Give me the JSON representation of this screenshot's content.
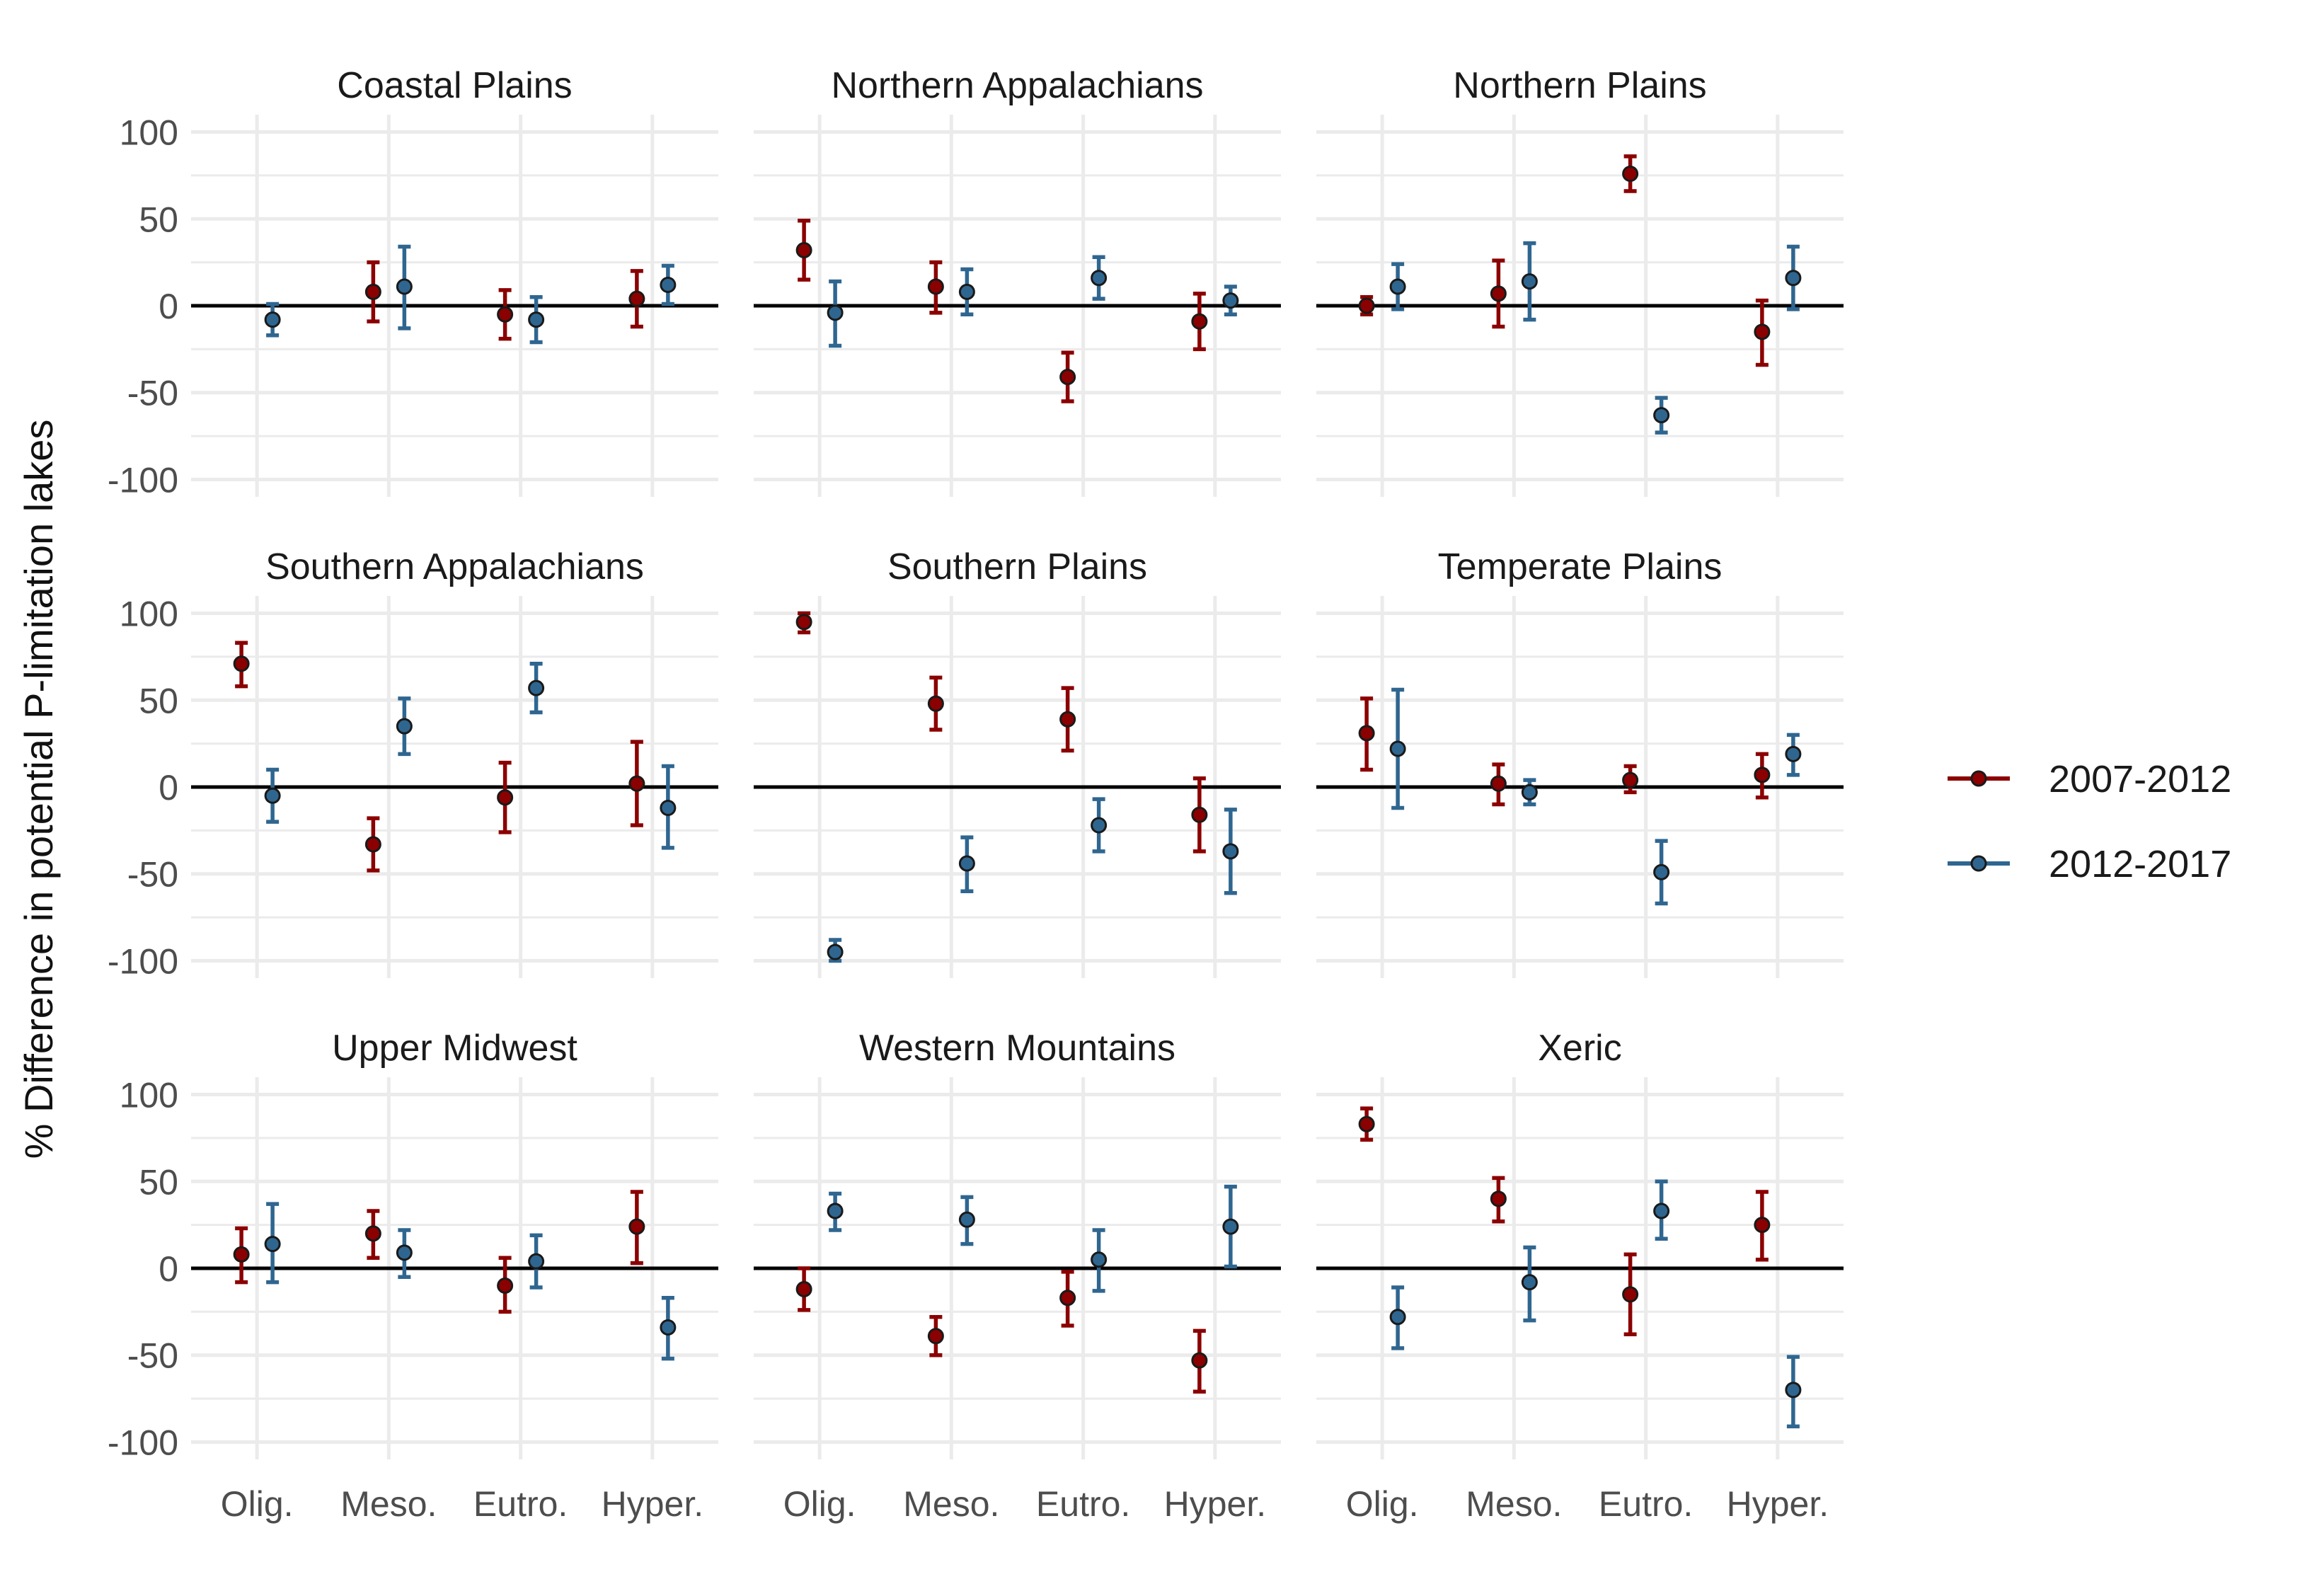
{
  "ylabel": "% Difference in potential P-limitation lakes",
  "xlabel": "",
  "legend": {
    "position": "right",
    "entries": [
      {
        "label": "2007-2012",
        "color": "#8B0000"
      },
      {
        "label": "2012-2017",
        "color": "#2F6690"
      }
    ]
  },
  "colors": {
    "series_2007_2012": "#8B0000",
    "series_2012_2017": "#2F6690",
    "grid": "#EBEBEB",
    "zero_line": "#000000",
    "point_fill": "#3a2a2a"
  },
  "chart_data": {
    "type": "scatter",
    "subtype": "point-with-error-bars, faceted 3x3",
    "categories": [
      "Olig.",
      "Meso.",
      "Eutro.",
      "Hyper."
    ],
    "ylim": [
      -110,
      110
    ],
    "yticks": [
      -100,
      -50,
      0,
      50,
      100
    ],
    "ytick_labels": [
      "-100",
      "-50",
      "0",
      "50",
      "100"
    ],
    "grid": true,
    "series_names": [
      "2007-2012",
      "2012-2017"
    ],
    "panels": [
      {
        "title": "Coastal Plains",
        "series": [
          {
            "name": "2007-2012",
            "values": [
              null,
              8,
              -5,
              4
            ],
            "lower": [
              null,
              -9,
              -19,
              -12
            ],
            "upper": [
              null,
              25,
              9,
              20
            ]
          },
          {
            "name": "2012-2017",
            "values": [
              -8,
              11,
              -8,
              12
            ],
            "lower": [
              -17,
              -13,
              -21,
              1
            ],
            "upper": [
              1,
              34,
              5,
              23
            ]
          }
        ]
      },
      {
        "title": "Northern Appalachians",
        "series": [
          {
            "name": "2007-2012",
            "values": [
              32,
              11,
              -41,
              -9
            ],
            "lower": [
              15,
              -4,
              -55,
              -25
            ],
            "upper": [
              49,
              25,
              -27,
              7
            ]
          },
          {
            "name": "2012-2017",
            "values": [
              -4,
              8,
              16,
              3
            ],
            "lower": [
              -23,
              -5,
              4,
              -5
            ],
            "upper": [
              14,
              21,
              28,
              11
            ]
          }
        ]
      },
      {
        "title": "Northern Plains",
        "series": [
          {
            "name": "2007-2012",
            "values": [
              0,
              7,
              76,
              -15
            ],
            "lower": [
              -5,
              -12,
              66,
              -34
            ],
            "upper": [
              5,
              26,
              86,
              3
            ]
          },
          {
            "name": "2012-2017",
            "values": [
              11,
              14,
              -63,
              16
            ],
            "lower": [
              -2,
              -8,
              -73,
              -2
            ],
            "upper": [
              24,
              36,
              -53,
              34
            ]
          }
        ]
      },
      {
        "title": "Southern Appalachians",
        "series": [
          {
            "name": "2007-2012",
            "values": [
              71,
              -33,
              -6,
              2
            ],
            "lower": [
              58,
              -48,
              -26,
              -22
            ],
            "upper": [
              83,
              -18,
              14,
              26
            ]
          },
          {
            "name": "2012-2017",
            "values": [
              -5,
              35,
              57,
              -12
            ],
            "lower": [
              -20,
              19,
              43,
              -35
            ],
            "upper": [
              10,
              51,
              71,
              12
            ]
          }
        ]
      },
      {
        "title": "Southern Plains",
        "series": [
          {
            "name": "2007-2012",
            "values": [
              95,
              48,
              39,
              -16
            ],
            "lower": [
              89,
              33,
              21,
              -37
            ],
            "upper": [
              100,
              63,
              57,
              5
            ]
          },
          {
            "name": "2012-2017",
            "values": [
              -95,
              -44,
              -22,
              -37
            ],
            "lower": [
              -100,
              -60,
              -37,
              -61
            ],
            "upper": [
              -88,
              -29,
              -7,
              -13
            ]
          }
        ]
      },
      {
        "title": "Temperate Plains",
        "series": [
          {
            "name": "2007-2012",
            "values": [
              31,
              2,
              4,
              7
            ],
            "lower": [
              10,
              -10,
              -3,
              -6
            ],
            "upper": [
              51,
              13,
              12,
              19
            ]
          },
          {
            "name": "2012-2017",
            "values": [
              22,
              -3,
              -49,
              19
            ],
            "lower": [
              -12,
              -10,
              -67,
              7
            ],
            "upper": [
              56,
              4,
              -31,
              30
            ]
          }
        ]
      },
      {
        "title": "Upper Midwest",
        "series": [
          {
            "name": "2007-2012",
            "values": [
              8,
              20,
              -10,
              24
            ],
            "lower": [
              -8,
              6,
              -25,
              3
            ],
            "upper": [
              23,
              33,
              6,
              44
            ]
          },
          {
            "name": "2012-2017",
            "values": [
              14,
              9,
              4,
              -34
            ],
            "lower": [
              -8,
              -5,
              -11,
              -52
            ],
            "upper": [
              37,
              22,
              19,
              -17
            ]
          }
        ]
      },
      {
        "title": "Western Mountains",
        "series": [
          {
            "name": "2007-2012",
            "values": [
              -12,
              -39,
              -17,
              -53
            ],
            "lower": [
              -24,
              -50,
              -33,
              -71
            ],
            "upper": [
              0,
              -28,
              -2,
              -36
            ]
          },
          {
            "name": "2012-2017",
            "values": [
              33,
              28,
              5,
              24
            ],
            "lower": [
              22,
              14,
              -13,
              1
            ],
            "upper": [
              43,
              41,
              22,
              47
            ]
          }
        ]
      },
      {
        "title": "Xeric",
        "series": [
          {
            "name": "2007-2012",
            "values": [
              83,
              40,
              -15,
              25
            ],
            "lower": [
              74,
              27,
              -38,
              5
            ],
            "upper": [
              92,
              52,
              8,
              44
            ]
          },
          {
            "name": "2012-2017",
            "values": [
              -28,
              -8,
              33,
              -70
            ],
            "lower": [
              -46,
              -30,
              17,
              -91
            ],
            "upper": [
              -11,
              12,
              50,
              -51
            ]
          }
        ]
      }
    ]
  }
}
